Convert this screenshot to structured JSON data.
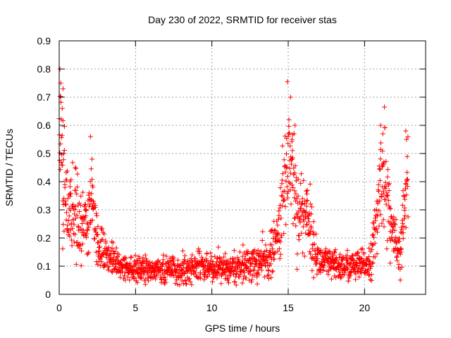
{
  "chart_data": {
    "type": "scatter",
    "title": "Day 230 of 2022, SRMTID for receiver stas",
    "xlabel": "GPS time / hours",
    "ylabel": "SRMTID / TECUs",
    "xlim": [
      0,
      24
    ],
    "ylim": [
      0,
      0.9
    ],
    "x_ticks": [
      "0",
      "5",
      "10",
      "15",
      "20"
    ],
    "x_tick_values": [
      0,
      5,
      10,
      15,
      20
    ],
    "y_ticks": [
      "0",
      "0.1",
      "0.2",
      "0.3",
      "0.4",
      "0.5",
      "0.6",
      "0.7",
      "0.8",
      "0.9"
    ],
    "y_tick_values": [
      0,
      0.1,
      0.2,
      0.3,
      0.4,
      0.5,
      0.6,
      0.7,
      0.8,
      0.9
    ],
    "grid": true,
    "marker": "+",
    "color": "#ff0000",
    "series": [
      {
        "name": "SRMTID",
        "profile": [
          [
            0.0,
            0.45,
            0.2
          ],
          [
            0.1,
            0.6,
            0.2
          ],
          [
            0.2,
            0.42,
            0.18
          ],
          [
            0.4,
            0.35,
            0.12
          ],
          [
            0.6,
            0.3,
            0.12
          ],
          [
            0.8,
            0.28,
            0.1
          ],
          [
            1.0,
            0.27,
            0.1
          ],
          [
            1.3,
            0.25,
            0.09
          ],
          [
            1.6,
            0.24,
            0.09
          ],
          [
            1.9,
            0.26,
            0.1
          ],
          [
            2.1,
            0.38,
            0.1
          ],
          [
            2.3,
            0.25,
            0.08
          ],
          [
            2.6,
            0.17,
            0.05
          ],
          [
            3.0,
            0.14,
            0.04
          ],
          [
            3.5,
            0.12,
            0.035
          ],
          [
            4.0,
            0.1,
            0.03
          ],
          [
            4.5,
            0.09,
            0.03
          ],
          [
            5.0,
            0.09,
            0.03
          ],
          [
            6.0,
            0.085,
            0.03
          ],
          [
            7.0,
            0.09,
            0.03
          ],
          [
            8.0,
            0.08,
            0.03
          ],
          [
            9.0,
            0.1,
            0.03
          ],
          [
            10.0,
            0.1,
            0.035
          ],
          [
            11.0,
            0.085,
            0.03
          ],
          [
            12.0,
            0.1,
            0.04
          ],
          [
            13.0,
            0.11,
            0.04
          ],
          [
            13.8,
            0.13,
            0.05
          ],
          [
            14.3,
            0.2,
            0.06
          ],
          [
            14.7,
            0.35,
            0.12
          ],
          [
            15.0,
            0.5,
            0.15
          ],
          [
            15.3,
            0.45,
            0.15
          ],
          [
            15.6,
            0.3,
            0.1
          ],
          [
            16.0,
            0.28,
            0.1
          ],
          [
            16.3,
            0.3,
            0.1
          ],
          [
            16.6,
            0.18,
            0.06
          ],
          [
            17.0,
            0.12,
            0.04
          ],
          [
            18.0,
            0.1,
            0.035
          ],
          [
            19.0,
            0.1,
            0.035
          ],
          [
            19.8,
            0.1,
            0.035
          ],
          [
            20.4,
            0.12,
            0.04
          ],
          [
            20.8,
            0.25,
            0.08
          ],
          [
            21.1,
            0.45,
            0.12
          ],
          [
            21.4,
            0.38,
            0.12
          ],
          [
            21.7,
            0.25,
            0.08
          ],
          [
            22.0,
            0.18,
            0.06
          ],
          [
            22.3,
            0.12,
            0.05
          ],
          [
            22.6,
            0.3,
            0.12
          ],
          [
            22.8,
            0.38,
            0.12
          ]
        ],
        "extremes": [
          [
            0.05,
            0.8
          ],
          [
            0.1,
            0.75
          ],
          [
            0.25,
            0.73
          ],
          [
            0.2,
            0.66
          ],
          [
            0.3,
            0.5
          ],
          [
            14.95,
            0.755
          ],
          [
            15.15,
            0.7
          ],
          [
            15.05,
            0.62
          ],
          [
            15.45,
            0.6
          ],
          [
            15.25,
            0.55
          ],
          [
            21.3,
            0.665
          ],
          [
            21.05,
            0.6
          ],
          [
            21.2,
            0.57
          ],
          [
            22.7,
            0.58
          ],
          [
            22.75,
            0.55
          ],
          [
            2.05,
            0.56
          ],
          [
            2.15,
            0.48
          ],
          [
            0.7,
            0.4
          ],
          [
            1.05,
            0.45
          ]
        ],
        "count": 1650,
        "x_range": [
          0.0,
          22.85
        ]
      }
    ]
  }
}
